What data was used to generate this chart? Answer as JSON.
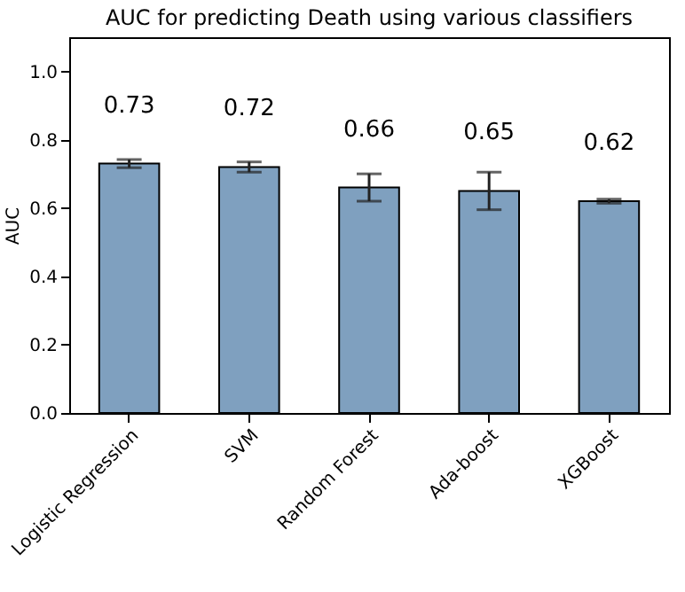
{
  "chart_data": {
    "type": "bar",
    "title": "AUC for predicting Death using various classifiers",
    "ylabel": "AUC",
    "categories": [
      "Logistic Regression",
      "SVM",
      "Random Forest",
      "Ada-boost",
      "XGBoost"
    ],
    "values": [
      0.73,
      0.72,
      0.66,
      0.65,
      0.62
    ],
    "errors": [
      0.012,
      0.015,
      0.04,
      0.055,
      0.006
    ],
    "color": "#7fa0bf",
    "ylim": [
      0,
      1.1
    ],
    "yticks": [
      {
        "value": 0,
        "label": "0.0"
      },
      0.2,
      0.4,
      0.6,
      0.8,
      {
        "value": 1,
        "label": "1.0"
      }
    ],
    "grid": false,
    "data_labels": true
  }
}
